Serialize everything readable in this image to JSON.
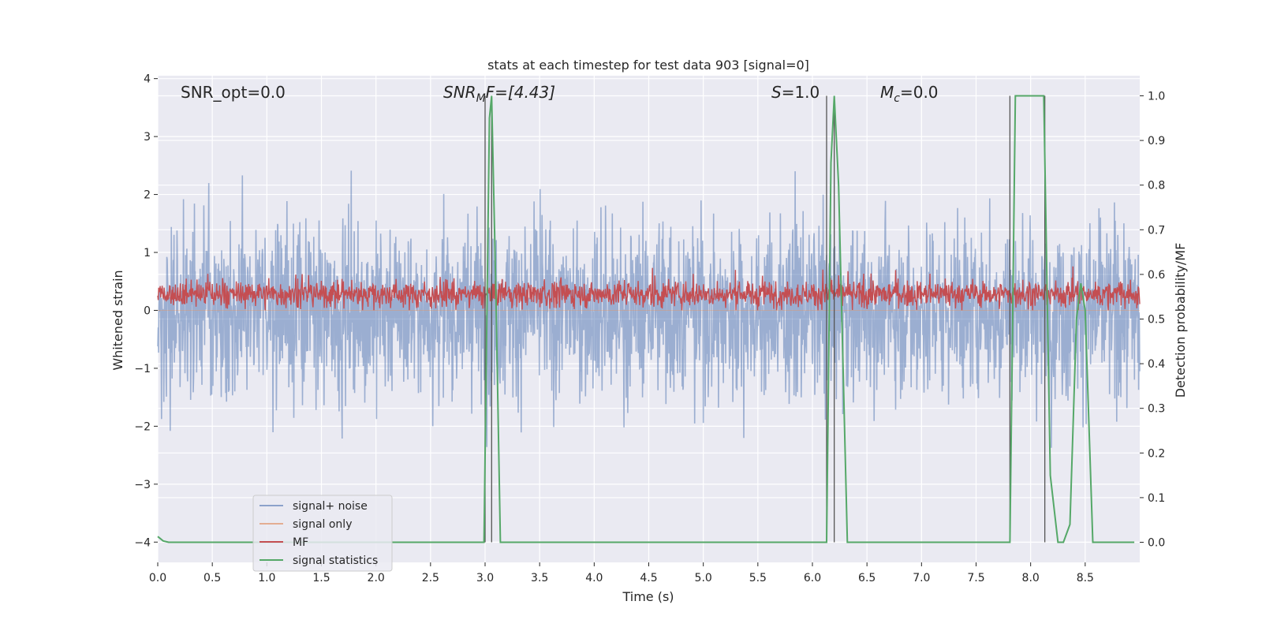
{
  "chart_data": {
    "type": "line",
    "title": "stats at each timestep for test data 903 [signal=0]",
    "xlabel": "Time (s)",
    "ylabel_left": "Whitened strain",
    "ylabel_right": "Detection probability/MF",
    "xlim": [
      0.0,
      9.0
    ],
    "ylim_left": [
      -4.35,
      4.05
    ],
    "ylim_right": [
      -0.045,
      1.045
    ],
    "xticks": [
      "0.0",
      "0.5",
      "1.0",
      "1.5",
      "2.0",
      "2.5",
      "3.0",
      "3.5",
      "4.0",
      "4.5",
      "5.0",
      "5.5",
      "6.0",
      "6.5",
      "7.0",
      "7.5",
      "8.0",
      "8.5"
    ],
    "yticks_left": [
      "4",
      "3",
      "2",
      "1",
      "0",
      "−1",
      "−2",
      "−3",
      "−4"
    ],
    "yticks_right": [
      "1.0",
      "0.9",
      "0.8",
      "0.7",
      "0.6",
      "0.5",
      "0.4",
      "0.3",
      "0.2",
      "0.1",
      "0.0"
    ],
    "grid": true,
    "legend_location": "lower-left",
    "annotations": {
      "snr_opt": "SNR_opt=0.0",
      "snr_mf_main": "SNR",
      "snr_mf_sub": "M",
      "snr_mf_rest": "F=[4.43]",
      "s_var": "S",
      "s_rest": "=1.0",
      "mc_var": "M",
      "mc_sub": "c",
      "mc_rest": "=0.0"
    },
    "series": [
      {
        "name": "signal+ noise",
        "color": "#4c72b0",
        "alpha": 0.5,
        "axis": "left",
        "description_values": "noise band approx ±2.5 with spikes to ±3.7"
      },
      {
        "name": "signal only",
        "color": "#dd8452",
        "axis": "left",
        "values": "all zero"
      },
      {
        "name": "MF",
        "color": "#c44e52",
        "axis": "left",
        "range": [
          0.0,
          0.75
        ]
      },
      {
        "name": "signal statistics",
        "color": "#55a868",
        "axis": "right",
        "x": [
          0.0,
          0.05,
          0.1,
          2.99,
          3.04,
          3.06,
          3.1,
          3.14,
          6.13,
          6.17,
          6.2,
          6.24,
          6.32,
          7.81,
          7.86,
          8.12,
          8.18,
          8.25,
          8.3,
          8.36,
          8.42,
          8.46,
          8.5,
          8.57,
          8.95
        ],
        "y": [
          0.013,
          0.003,
          0.0,
          0.0,
          0.95,
          1.0,
          0.55,
          0.0,
          0.0,
          0.85,
          1.0,
          0.8,
          0.0,
          0.0,
          1.0,
          1.0,
          0.15,
          0.0,
          0.0,
          0.04,
          0.5,
          0.58,
          0.52,
          0.0,
          0.0
        ]
      }
    ],
    "vertical_lines_x": [
      3.0,
      3.06,
      6.13,
      6.2,
      7.81,
      8.13
    ]
  },
  "legend": {
    "items": [
      {
        "label": "signal+ noise",
        "color": "#4c72b0"
      },
      {
        "label": "signal only",
        "color": "#dd8452"
      },
      {
        "label": "MF",
        "color": "#c44e52"
      },
      {
        "label": "signal statistics",
        "color": "#55a868"
      }
    ]
  }
}
